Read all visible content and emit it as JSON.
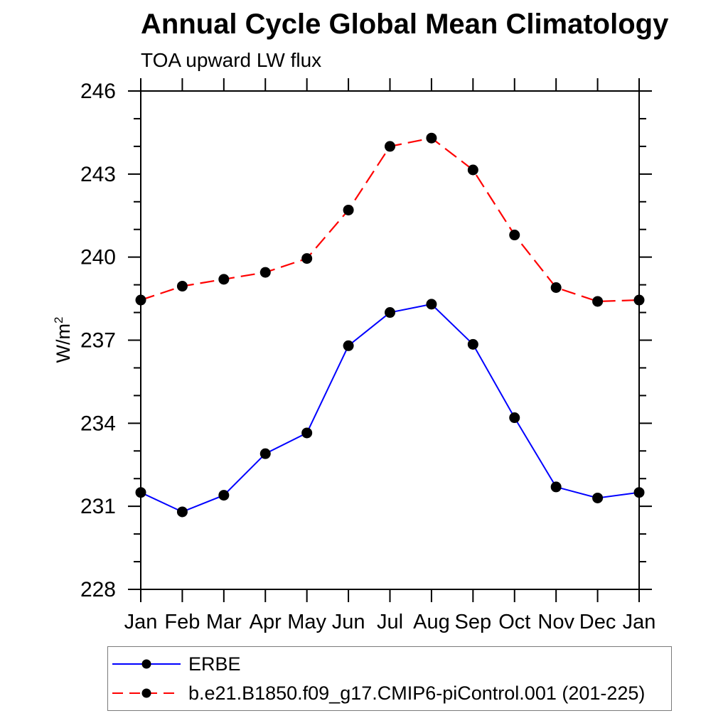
{
  "figure": {
    "title": "Annual Cycle Global Mean Climatology",
    "subtitle": "TOA upward LW flux",
    "y_axis_label_base": "W/m",
    "y_axis_label_sup": "2",
    "background_color": "#ffffff",
    "axis_color": "#000000"
  },
  "legend": {
    "position": "bottom-left",
    "border_color": "#7a7a7a",
    "entries": [
      {
        "label": "ERBE",
        "line_style": "solid",
        "line_color": "#0000ff",
        "marker": "filled-circle-icon",
        "marker_color": "#000000"
      },
      {
        "label": "b.e21.B1850.f09_g17.CMIP6-piControl.001 (201-225)",
        "line_style": "dashed",
        "line_color": "#ff0000",
        "marker": "filled-circle-icon",
        "marker_color": "#000000"
      }
    ]
  },
  "chart_data": {
    "type": "line",
    "title": "Annual Cycle Global Mean Climatology",
    "subtitle": "TOA upward LW flux",
    "xlabel": "",
    "ylabel": "W/m^2",
    "categories": [
      "Jan",
      "Feb",
      "Mar",
      "Apr",
      "May",
      "Jun",
      "Jul",
      "Aug",
      "Sep",
      "Oct",
      "Nov",
      "Dec",
      "Jan"
    ],
    "series": [
      {
        "id": "erbe",
        "name": "ERBE",
        "color": "#0000ff",
        "style": "solid",
        "width": 2,
        "marker": "circle",
        "marker_color": "#000000",
        "values": [
          231.5,
          230.8,
          231.4,
          232.9,
          233.65,
          236.8,
          238.0,
          238.3,
          236.85,
          234.2,
          231.7,
          231.3,
          231.5
        ]
      },
      {
        "id": "cmip6-picontrol",
        "name": "b.e21.B1850.f09_g17.CMIP6-piControl.001 (201-225)",
        "color": "#ff0000",
        "style": "dashed",
        "width": 2.2,
        "marker": "circle",
        "marker_color": "#000000",
        "values": [
          238.45,
          238.95,
          239.2,
          239.45,
          239.95,
          241.7,
          244.0,
          244.3,
          243.15,
          240.8,
          238.9,
          238.4,
          238.45
        ]
      }
    ],
    "ylim": [
      228,
      246
    ],
    "y_major_ticks": [
      228,
      231,
      234,
      237,
      240,
      243,
      246
    ],
    "y_minor_step": 1,
    "grid": false,
    "tick_direction": "out",
    "legend_position": "bottom-left-box"
  }
}
